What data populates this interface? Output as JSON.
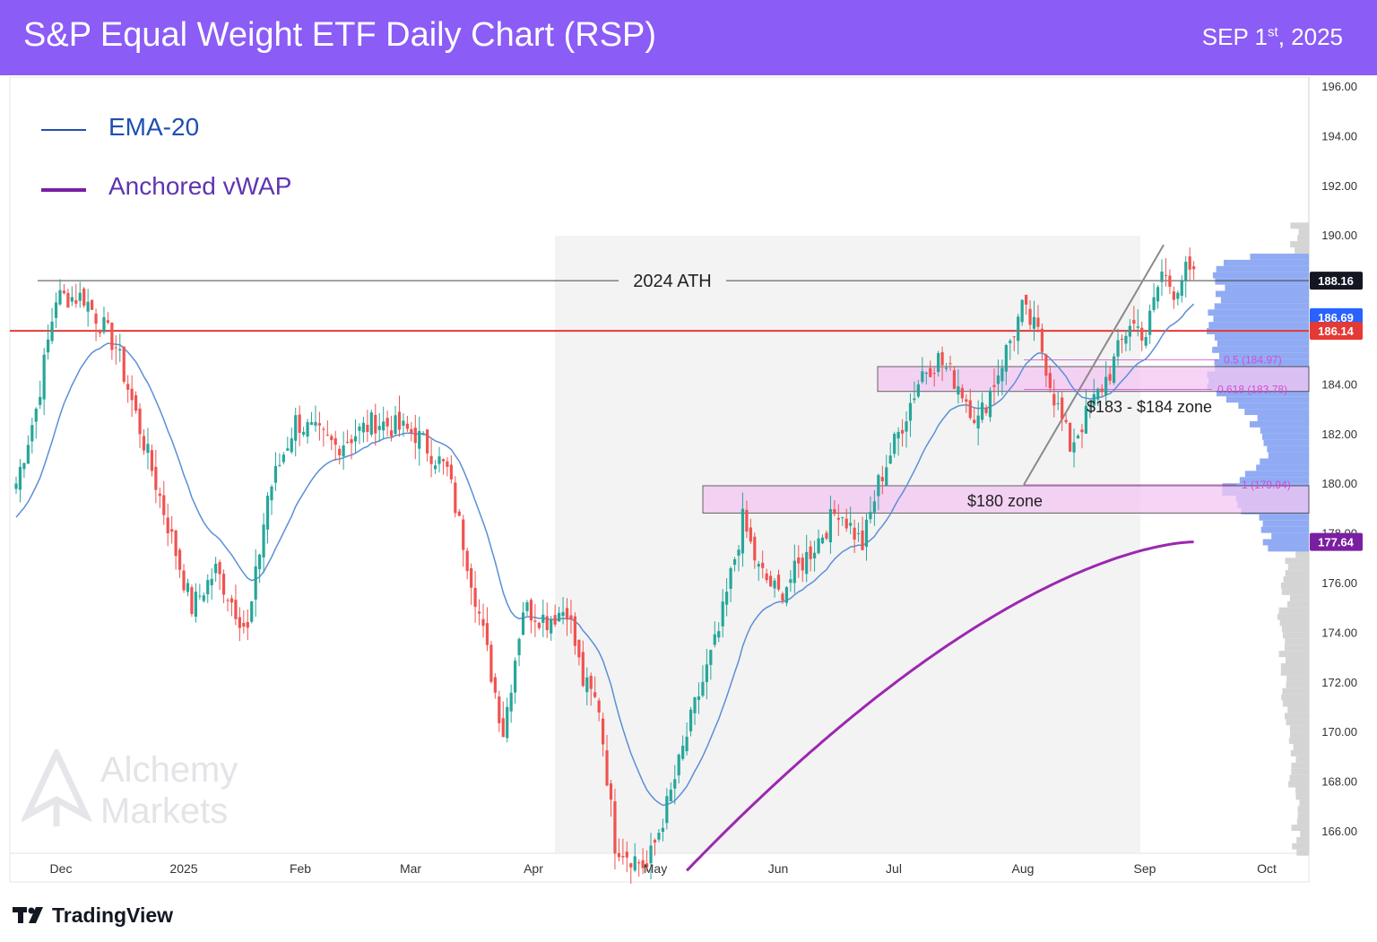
{
  "header": {
    "title": "S&P Equal Weight ETF Daily Chart (RSP)",
    "date_main": "SEP 1",
    "date_sup": "st",
    "date_tail": ", 2025",
    "background": "#8b5cf6"
  },
  "legend": [
    {
      "label": "EMA-20",
      "color": "#1f4fb0"
    },
    {
      "label": "Anchored vWAP",
      "color": "#7b1fa2"
    }
  ],
  "watermark": {
    "line1": "Alchemy",
    "line2": "Markets"
  },
  "footer": {
    "brand": "TradingView"
  },
  "chart_data": {
    "type": "candlestick",
    "ticker": "RSP",
    "ylim": [
      165,
      196.5
    ],
    "y_ticks": [
      "196.00",
      "194.00",
      "192.00",
      "190.00",
      "188.00",
      "186.00",
      "184.00",
      "182.00",
      "180.00",
      "178.00",
      "176.00",
      "174.00",
      "172.00",
      "170.00",
      "168.00",
      "166.00"
    ],
    "x_ticks": [
      "Dec",
      "2025",
      "Feb",
      "Mar",
      "Apr",
      "May",
      "Jun",
      "Jul",
      "Aug",
      "Sep",
      "Oct"
    ],
    "colors": {
      "up": "#26a69a",
      "down": "#ef5350",
      "ema": "#5b8fd6",
      "vwap": "#9c27b0",
      "ath": "#444444",
      "support": "#e53935",
      "zone_fill": "#f3c6f3",
      "zone_border": "#333333",
      "fib": "#d64bd6",
      "volume_profile": "#8aa6f2",
      "volume_profile_gray": "#cfcfcf"
    },
    "price_labels": [
      {
        "value": "188.16",
        "bg": "#131722"
      },
      {
        "value": "186.69",
        "bg": "#2962ff"
      },
      {
        "value": "186.14",
        "bg": "#e53935"
      },
      {
        "value": "177.64",
        "bg": "#7b1fa2"
      }
    ],
    "annotations": {
      "ath": {
        "label": "2024 ATH",
        "price": 188.16
      },
      "support_line": {
        "price": 186.14
      },
      "zone_183": {
        "label": "$183 - $184 zone",
        "from": 183.7,
        "to": 184.7
      },
      "zone_180": {
        "label": "$180 zone",
        "from": 178.8,
        "to": 179.9
      },
      "fib_05": {
        "label": "0.5 (184.97)",
        "price": 184.97
      },
      "fib_0618": {
        "label": "0.618 (183.78)",
        "price": 183.78
      },
      "fib_1": {
        "label": "1 (179.94)",
        "price": 179.94
      }
    },
    "anchors": [
      {
        "d": 0,
        "p": 180.0
      },
      {
        "d": 5,
        "p": 183.0
      },
      {
        "d": 10,
        "p": 187.5
      },
      {
        "d": 17,
        "p": 187.5
      },
      {
        "d": 25,
        "p": 185.5
      },
      {
        "d": 35,
        "p": 180.0
      },
      {
        "d": 44,
        "p": 175.0
      },
      {
        "d": 50,
        "p": 176.5
      },
      {
        "d": 58,
        "p": 174.0
      },
      {
        "d": 63,
        "p": 179.5
      },
      {
        "d": 70,
        "p": 182.5
      },
      {
        "d": 80,
        "p": 181.5
      },
      {
        "d": 90,
        "p": 182.5
      },
      {
        "d": 100,
        "p": 182.0
      },
      {
        "d": 108,
        "p": 180.5
      },
      {
        "d": 115,
        "p": 175.5
      },
      {
        "d": 122,
        "p": 170.0
      },
      {
        "d": 127,
        "p": 175.0
      },
      {
        "d": 133,
        "p": 174.5
      },
      {
        "d": 138,
        "p": 175.0
      },
      {
        "d": 142,
        "p": 172.0
      },
      {
        "d": 146,
        "p": 171.0
      },
      {
        "d": 150,
        "p": 165.5
      },
      {
        "d": 158,
        "p": 164.5
      },
      {
        "d": 164,
        "p": 167.5
      },
      {
        "d": 170,
        "p": 171.0
      },
      {
        "d": 176,
        "p": 174.0
      },
      {
        "d": 182,
        "p": 178.5
      },
      {
        "d": 186,
        "p": 176.5
      },
      {
        "d": 191,
        "p": 175.5
      },
      {
        "d": 200,
        "p": 177.5
      },
      {
        "d": 206,
        "p": 179.0
      },
      {
        "d": 212,
        "p": 177.5
      },
      {
        "d": 216,
        "p": 180.0
      },
      {
        "d": 221,
        "p": 182.0
      },
      {
        "d": 227,
        "p": 184.5
      },
      {
        "d": 231,
        "p": 185.0
      },
      {
        "d": 236,
        "p": 184.0
      },
      {
        "d": 241,
        "p": 182.5
      },
      {
        "d": 246,
        "p": 184.5
      },
      {
        "d": 252,
        "p": 187.0
      },
      {
        "d": 256,
        "p": 186.0
      },
      {
        "d": 260,
        "p": 183.5
      },
      {
        "d": 264,
        "p": 181.5
      },
      {
        "d": 269,
        "p": 183.0
      },
      {
        "d": 274,
        "p": 184.5
      },
      {
        "d": 279,
        "p": 186.5
      },
      {
        "d": 283,
        "p": 186.0
      },
      {
        "d": 287,
        "p": 188.5
      },
      {
        "d": 290,
        "p": 187.8
      },
      {
        "d": 293,
        "p": 188.5
      },
      {
        "d": 295,
        "p": 188.2
      }
    ]
  }
}
